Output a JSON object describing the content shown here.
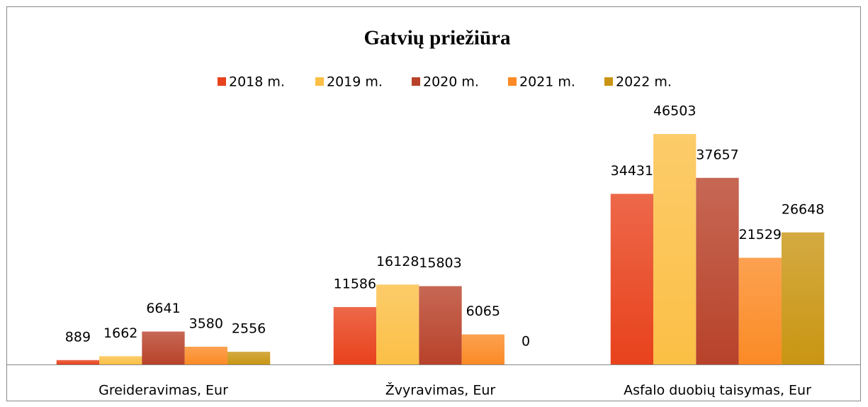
{
  "chart_data": {
    "type": "bar",
    "title": "Gatvių priežiūra",
    "categories": [
      "Greideravimas, Eur",
      "Žvyravimas, Eur",
      "Asfalo duobių taisymas, Eur"
    ],
    "series": [
      {
        "name": "2018 m.",
        "color": "#e8421c",
        "values": [
          889,
          11586,
          34431
        ]
      },
      {
        "name": "2019 m.",
        "color": "#fbbf45",
        "values": [
          1662,
          16128,
          46503
        ]
      },
      {
        "name": "2020 m.",
        "color": "#b8422a",
        "values": [
          6641,
          15803,
          37657
        ]
      },
      {
        "name": "2021 m.",
        "color": "#fb8a25",
        "values": [
          3580,
          6065,
          21529
        ]
      },
      {
        "name": "2022 m.",
        "color": "#c99512",
        "values": [
          2556,
          0,
          26648
        ]
      }
    ],
    "legend": "top"
  }
}
